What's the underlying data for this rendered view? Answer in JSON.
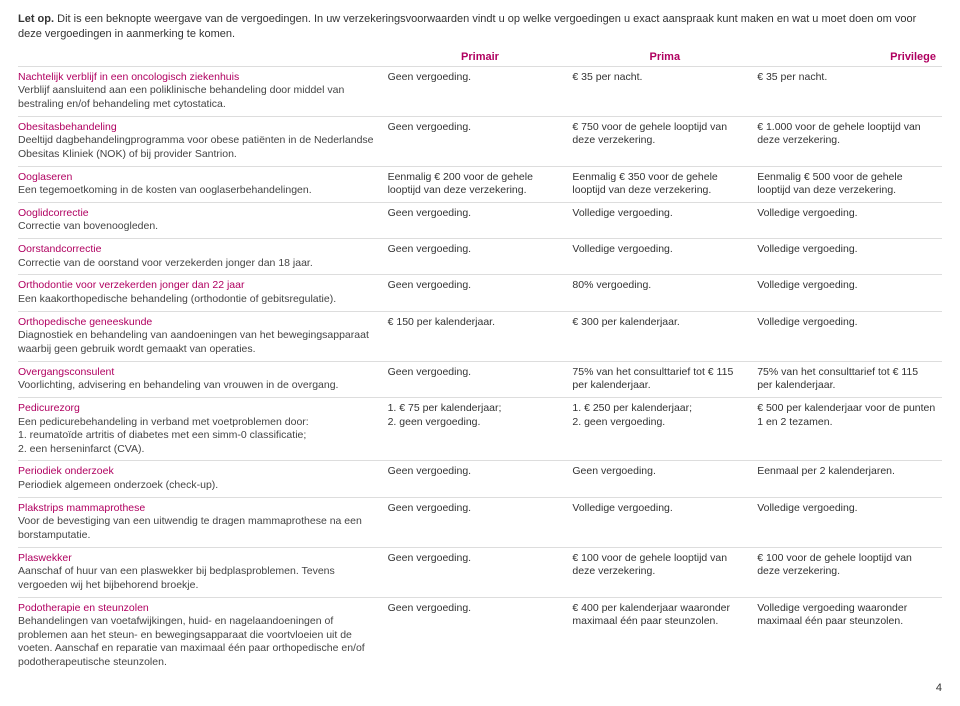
{
  "intro_bold": "Let op.",
  "intro_text": " Dit is een beknopte weergave van de vergoedingen. In uw verzekeringsvoorwaarden vindt u op welke vergoedingen u exact aanspraak kunt maken en wat u moet doen om voor deze vergoedingen in aanmerking te komen.",
  "headers": {
    "c1": "Primair",
    "c2": "Prima",
    "c3": "Privilege"
  },
  "rows": [
    {
      "title": "Nachtelijk verblijf in een oncologisch ziekenhuis",
      "desc": "Verblijf aansluitend aan een poliklinische behandeling door middel van bestraling en/of behandeling met cytostatica.",
      "c1": "Geen vergoeding.",
      "c2": "€ 35 per nacht.",
      "c3": "€ 35 per nacht."
    },
    {
      "title": "Obesitasbehandeling",
      "desc": "Deeltijd dagbehandelingprogramma voor obese patiënten in de Nederlandse Obesitas Kliniek (NOK) of bij provider Santrion.",
      "c1": "Geen vergoeding.",
      "c2": "€ 750 voor de gehele looptijd van deze verzekering.",
      "c3": "€ 1.000 voor de gehele looptijd van deze verzekering."
    },
    {
      "title": "Ooglaseren",
      "desc": "Een tegemoetkoming in de kosten van ooglaserbehandelingen.",
      "c1": "Eenmalig € 200 voor de gehele looptijd van deze verzekering.",
      "c2": "Eenmalig € 350 voor de gehele looptijd van deze verzekering.",
      "c3": "Eenmalig € 500 voor de gehele looptijd van deze verzekering."
    },
    {
      "title": "Ooglidcorrectie",
      "desc": "Correctie van bovenoogleden.",
      "c1": "Geen vergoeding.",
      "c2": "Volledige vergoeding.",
      "c3": "Volledige vergoeding."
    },
    {
      "title": "Oorstandcorrectie",
      "desc": "Correctie van de oorstand voor verzekerden jonger dan 18 jaar.",
      "c1": "Geen vergoeding.",
      "c2": "Volledige vergoeding.",
      "c3": "Volledige vergoeding."
    },
    {
      "title": "Orthodontie voor verzekerden jonger dan 22 jaar",
      "desc": "Een kaakorthopedische behandeling (orthodontie of gebitsregulatie).",
      "c1": "Geen vergoeding.",
      "c2": "80% vergoeding.",
      "c3": "Volledige vergoeding."
    },
    {
      "title": "Orthopedische geneeskunde",
      "desc": "Diagnostiek en behandeling van aandoeningen van het bewegingsapparaat waarbij geen gebruik wordt gemaakt van operaties.",
      "c1": "€ 150 per kalenderjaar.",
      "c2": "€ 300 per kalenderjaar.",
      "c3": "Volledige vergoeding."
    },
    {
      "title": "Overgangsconsulent",
      "desc": "Voorlichting, advisering en behandeling van vrouwen in de overgang.",
      "c1": "Geen vergoeding.",
      "c2": "75% van het consulttarief tot € 115 per kalenderjaar.",
      "c3": "75% van het consulttarief tot € 115 per kalenderjaar."
    },
    {
      "title": "Pedicurezorg",
      "desc": "Een pedicurebehandeling in verband met voetproblemen door:\n1. reumatoïde artritis of diabetes met een simm-0 classificatie;\n2. een herseninfarct (CVA).",
      "c1": "1. € 75 per kalenderjaar;\n2. geen vergoeding.",
      "c2": "1. € 250 per kalenderjaar;\n2. geen vergoeding.",
      "c3": "€ 500 per kalenderjaar voor de punten 1 en 2 tezamen."
    },
    {
      "title": "Periodiek onderzoek",
      "desc": "Periodiek algemeen onderzoek (check-up).",
      "c1": "Geen vergoeding.",
      "c2": "Geen vergoeding.",
      "c3": "Eenmaal per 2 kalenderjaren."
    },
    {
      "title": "Plakstrips mammaprothese",
      "desc": "Voor de bevestiging van een uitwendig te dragen mammaprothese na een borstamputatie.",
      "c1": "Geen vergoeding.",
      "c2": "Volledige vergoeding.",
      "c3": "Volledige vergoeding."
    },
    {
      "title": "Plaswekker",
      "desc": "Aanschaf of huur van een plaswekker bij bedplasproblemen. Tevens vergoeden wij het bijbehorend broekje.",
      "c1": "Geen vergoeding.",
      "c2": "€ 100 voor de gehele looptijd van deze verzekering.",
      "c3": "€ 100 voor de gehele looptijd van deze verzekering."
    },
    {
      "title": "Podotherapie en steunzolen",
      "desc": "Behandelingen van voetafwijkingen, huid- en nagelaandoeningen of problemen aan het steun- en bewegingsapparaat die voortvloeien uit de voeten. Aanschaf en reparatie van maximaal één paar orthopedische en/of podotherapeutische steunzolen.",
      "c1": "Geen vergoeding.",
      "c2": "€ 400 per kalenderjaar waaronder maximaal één paar steunzolen.",
      "c3": "Volledige vergoeding waaronder maximaal één paar steunzolen."
    }
  ],
  "page_number": "4"
}
